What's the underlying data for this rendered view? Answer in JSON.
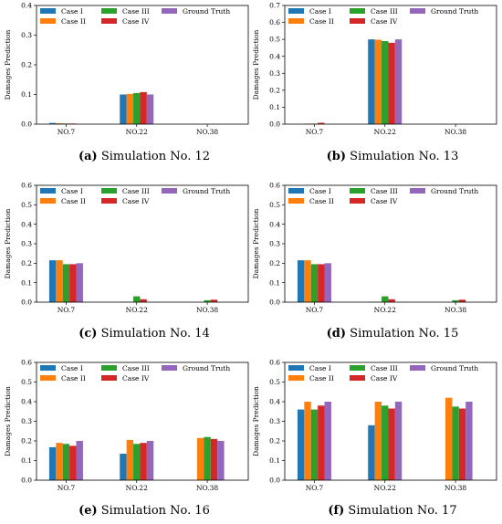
{
  "colors": {
    "Case I": "#1f77b4",
    "Case II": "#ff7f0e",
    "Case III": "#2ca02c",
    "Case IV": "#d62728",
    "Ground Truth": "#9467bd"
  },
  "legend": {
    "entries": [
      "Case I",
      "Case II",
      "Case III",
      "Case IV",
      "Ground Truth"
    ],
    "placement": "top"
  },
  "chart_data": [
    {
      "type": "bar",
      "caption_label": "(a)",
      "caption_text": " Simulation No. 12",
      "ylabel": "Damages Prediction",
      "categories": [
        "NO.7",
        "NO.22",
        "NO.38"
      ],
      "ylim": [
        0,
        0.4
      ],
      "yticks": [
        "0.0",
        "0.1",
        "0.2",
        "0.3",
        "0.4"
      ],
      "series": [
        {
          "name": "Case I",
          "values": [
            0.004,
            0.1,
            0.0
          ]
        },
        {
          "name": "Case II",
          "values": [
            0.003,
            0.102,
            0.0
          ]
        },
        {
          "name": "Case III",
          "values": [
            0.002,
            0.105,
            0.0
          ]
        },
        {
          "name": "Case IV",
          "values": [
            0.002,
            0.108,
            0.0
          ]
        },
        {
          "name": "Ground Truth",
          "values": [
            0.0,
            0.1,
            0.0
          ]
        }
      ]
    },
    {
      "type": "bar",
      "caption_label": "(b)",
      "caption_text": " Simulation No. 13",
      "ylabel": "Damages Prediction",
      "categories": [
        "NO.7",
        "NO.22",
        "NO.38"
      ],
      "ylim": [
        0,
        0.7
      ],
      "yticks": [
        "0.0",
        "0.1",
        "0.2",
        "0.3",
        "0.4",
        "0.5",
        "0.6",
        "0.7"
      ],
      "series": [
        {
          "name": "Case I",
          "values": [
            0.0,
            0.5,
            0.0
          ]
        },
        {
          "name": "Case II",
          "values": [
            0.003,
            0.498,
            0.0
          ]
        },
        {
          "name": "Case III",
          "values": [
            0.003,
            0.49,
            0.0
          ]
        },
        {
          "name": "Case IV",
          "values": [
            0.008,
            0.48,
            0.0
          ]
        },
        {
          "name": "Ground Truth",
          "values": [
            0.0,
            0.5,
            0.0
          ]
        }
      ]
    },
    {
      "type": "bar",
      "caption_label": "(c)",
      "caption_text": " Simulation No. 14",
      "ylabel": "Damages Prediction",
      "categories": [
        "NO.7",
        "NO.22",
        "NO.38"
      ],
      "ylim": [
        0,
        0.6
      ],
      "yticks": [
        "0.0",
        "0.1",
        "0.2",
        "0.3",
        "0.4",
        "0.5",
        "0.6"
      ],
      "series": [
        {
          "name": "Case I",
          "values": [
            0.215,
            0.002,
            0.0
          ]
        },
        {
          "name": "Case II",
          "values": [
            0.215,
            0.002,
            0.0
          ]
        },
        {
          "name": "Case III",
          "values": [
            0.195,
            0.03,
            0.01
          ]
        },
        {
          "name": "Case IV",
          "values": [
            0.195,
            0.015,
            0.013
          ]
        },
        {
          "name": "Ground Truth",
          "values": [
            0.2,
            0.0,
            0.0
          ]
        }
      ]
    },
    {
      "type": "bar",
      "caption_label": "(d)",
      "caption_text": " Simulation No. 15",
      "ylabel": "Damages Prediction",
      "categories": [
        "NO.7",
        "NO.22",
        "NO.38"
      ],
      "ylim": [
        0,
        0.6
      ],
      "yticks": [
        "0.0",
        "0.1",
        "0.2",
        "0.3",
        "0.4",
        "0.5",
        "0.6"
      ],
      "series": [
        {
          "name": "Case I",
          "values": [
            0.215,
            0.002,
            0.0
          ]
        },
        {
          "name": "Case II",
          "values": [
            0.215,
            0.002,
            0.0
          ]
        },
        {
          "name": "Case III",
          "values": [
            0.195,
            0.03,
            0.01
          ]
        },
        {
          "name": "Case IV",
          "values": [
            0.195,
            0.015,
            0.013
          ]
        },
        {
          "name": "Ground Truth",
          "values": [
            0.2,
            0.0,
            0.0
          ]
        }
      ]
    },
    {
      "type": "bar",
      "caption_label": "(e)",
      "caption_text": " Simulation No. 16",
      "ylabel": "Damages Prediction",
      "categories": [
        "NO.7",
        "NO.22",
        "NO.38"
      ],
      "ylim": [
        0,
        0.6
      ],
      "yticks": [
        "0.0",
        "0.1",
        "0.2",
        "0.3",
        "0.4",
        "0.5",
        "0.6"
      ],
      "series": [
        {
          "name": "Case I",
          "values": [
            0.168,
            0.135,
            0.0
          ]
        },
        {
          "name": "Case II",
          "values": [
            0.19,
            0.205,
            0.215
          ]
        },
        {
          "name": "Case III",
          "values": [
            0.185,
            0.185,
            0.22
          ]
        },
        {
          "name": "Case IV",
          "values": [
            0.175,
            0.19,
            0.21
          ]
        },
        {
          "name": "Ground Truth",
          "values": [
            0.2,
            0.2,
            0.2
          ]
        }
      ]
    },
    {
      "type": "bar",
      "caption_label": "(f)",
      "caption_text": " Simulation No. 17",
      "ylabel": "Damages Prediction",
      "categories": [
        "NO.7",
        "NO.22",
        "NO.38"
      ],
      "ylim": [
        0,
        0.6
      ],
      "yticks": [
        "0.0",
        "0.1",
        "0.2",
        "0.3",
        "0.4",
        "0.5",
        "0.6"
      ],
      "series": [
        {
          "name": "Case I",
          "values": [
            0.36,
            0.28,
            0.0
          ]
        },
        {
          "name": "Case II",
          "values": [
            0.4,
            0.4,
            0.42
          ]
        },
        {
          "name": "Case III",
          "values": [
            0.36,
            0.38,
            0.375
          ]
        },
        {
          "name": "Case IV",
          "values": [
            0.38,
            0.365,
            0.365
          ]
        },
        {
          "name": "Ground Truth",
          "values": [
            0.4,
            0.4,
            0.4
          ]
        }
      ]
    }
  ]
}
